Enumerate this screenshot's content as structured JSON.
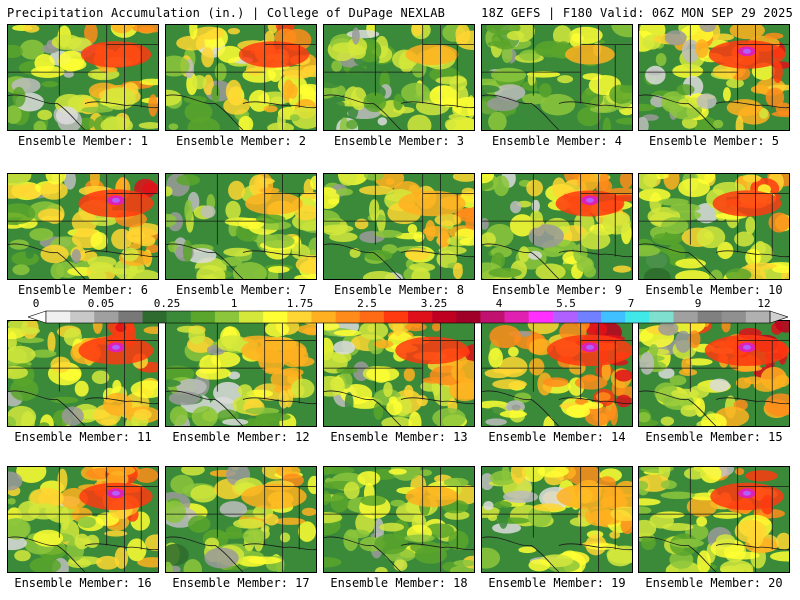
{
  "header": {
    "left": "Precipitation Accumulation (in.) | College of DuPage NEXLAB",
    "right": "18Z GEFS | F180 Valid: 06Z MON SEP 29 2025"
  },
  "panels": [
    {
      "label": "Ensemble Member: 1",
      "intensity": 1.1,
      "hot_cell": 0
    },
    {
      "label": "Ensemble Member: 2",
      "intensity": 1.1,
      "hot_cell": 0
    },
    {
      "label": "Ensemble Member: 3",
      "intensity": 0.55,
      "hot_cell": 0
    },
    {
      "label": "Ensemble Member: 4",
      "intensity": 0.45,
      "hot_cell": 0
    },
    {
      "label": "Ensemble Member: 5",
      "intensity": 1.3,
      "hot_cell": 1
    },
    {
      "label": "Ensemble Member: 6",
      "intensity": 1.25,
      "hot_cell": 1
    },
    {
      "label": "Ensemble Member: 7",
      "intensity": 0.7,
      "hot_cell": 0
    },
    {
      "label": "Ensemble Member: 8",
      "intensity": 1.0,
      "hot_cell": 0
    },
    {
      "label": "Ensemble Member: 9",
      "intensity": 1.05,
      "hot_cell": 1
    },
    {
      "label": "Ensemble Member: 10",
      "intensity": 1.05,
      "hot_cell": 0
    },
    {
      "label": "Ensemble Member: 11",
      "intensity": 1.25,
      "hot_cell": 1
    },
    {
      "label": "Ensemble Member: 12",
      "intensity": 0.95,
      "hot_cell": 0
    },
    {
      "label": "Ensemble Member: 13",
      "intensity": 1.2,
      "hot_cell": 0
    },
    {
      "label": "Ensemble Member: 14",
      "intensity": 1.6,
      "hot_cell": 1
    },
    {
      "label": "Ensemble Member: 15",
      "intensity": 1.55,
      "hot_cell": 1
    },
    {
      "label": "Ensemble Member: 16",
      "intensity": 1.2,
      "hot_cell": 1
    },
    {
      "label": "Ensemble Member: 17",
      "intensity": 0.95,
      "hot_cell": 0
    },
    {
      "label": "Ensemble Member: 18",
      "intensity": 0.55,
      "hot_cell": 0
    },
    {
      "label": "Ensemble Member: 19",
      "intensity": 1.0,
      "hot_cell": 0
    },
    {
      "label": "Ensemble Member: 20",
      "intensity": 1.2,
      "hot_cell": 1
    }
  ],
  "colorbar": {
    "tick_labels": [
      "0",
      "0.05",
      "0.25",
      "1",
      "1.75",
      "2.5",
      "3.25",
      "4",
      "5.5",
      "7",
      "9",
      "12"
    ],
    "colors": [
      "#f0f0f0",
      "#c8c8c8",
      "#a0a0a0",
      "#787878",
      "#2e6b2e",
      "#3a8a3a",
      "#5aa52c",
      "#8cc63c",
      "#d4e83c",
      "#ffff33",
      "#ffd633",
      "#ffb020",
      "#ff8c1a",
      "#ff6a14",
      "#ff3a10",
      "#e0101a",
      "#c00020",
      "#a00028",
      "#c01070",
      "#e020b0",
      "#ff30ff",
      "#b060ff",
      "#7080ff",
      "#40c0ff",
      "#40e8e8",
      "#80e0d0",
      "#a0a0a0",
      "#808080",
      "#909090",
      "#b0b0b0"
    ]
  }
}
